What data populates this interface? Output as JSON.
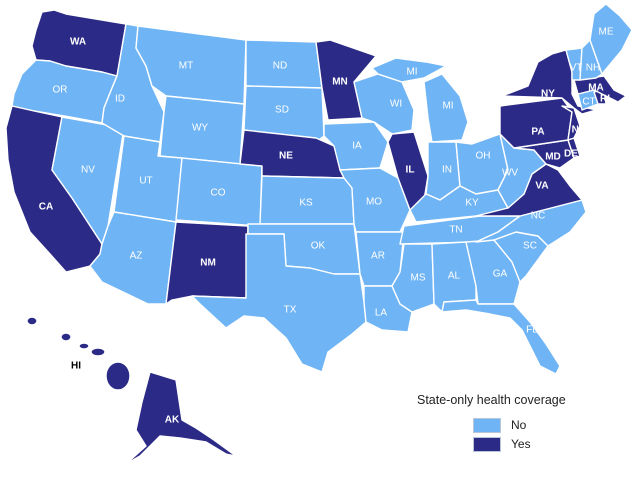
{
  "colors": {
    "no": "#6fb4f4",
    "yes": "#2b2a86",
    "border": "#ffffff"
  },
  "legend": {
    "title": "State-only health coverage",
    "items": [
      {
        "label": "No",
        "status": "no"
      },
      {
        "label": "Yes",
        "status": "yes"
      }
    ]
  },
  "states": [
    {
      "abbr": "WA",
      "status": "yes"
    },
    {
      "abbr": "OR",
      "status": "no"
    },
    {
      "abbr": "CA",
      "status": "yes"
    },
    {
      "abbr": "NV",
      "status": "no"
    },
    {
      "abbr": "ID",
      "status": "no"
    },
    {
      "abbr": "MT",
      "status": "no"
    },
    {
      "abbr": "WY",
      "status": "no"
    },
    {
      "abbr": "UT",
      "status": "no"
    },
    {
      "abbr": "AZ",
      "status": "no"
    },
    {
      "abbr": "CO",
      "status": "no"
    },
    {
      "abbr": "NM",
      "status": "yes"
    },
    {
      "abbr": "ND",
      "status": "no"
    },
    {
      "abbr": "SD",
      "status": "no"
    },
    {
      "abbr": "NE",
      "status": "yes"
    },
    {
      "abbr": "KS",
      "status": "no"
    },
    {
      "abbr": "OK",
      "status": "no"
    },
    {
      "abbr": "TX",
      "status": "no"
    },
    {
      "abbr": "MN",
      "status": "yes"
    },
    {
      "abbr": "IA",
      "status": "no"
    },
    {
      "abbr": "MO",
      "status": "no"
    },
    {
      "abbr": "AR",
      "status": "no"
    },
    {
      "abbr": "LA",
      "status": "no"
    },
    {
      "abbr": "WI",
      "status": "no"
    },
    {
      "abbr": "IL",
      "status": "yes"
    },
    {
      "abbr": "MI",
      "status": "no"
    },
    {
      "abbr": "IN",
      "status": "no"
    },
    {
      "abbr": "OH",
      "status": "no"
    },
    {
      "abbr": "KY",
      "status": "no"
    },
    {
      "abbr": "TN",
      "status": "no"
    },
    {
      "abbr": "MS",
      "status": "no"
    },
    {
      "abbr": "AL",
      "status": "no"
    },
    {
      "abbr": "GA",
      "status": "no"
    },
    {
      "abbr": "FL",
      "status": "no"
    },
    {
      "abbr": "SC",
      "status": "no"
    },
    {
      "abbr": "NC",
      "status": "no"
    },
    {
      "abbr": "VA",
      "status": "yes"
    },
    {
      "abbr": "WV",
      "status": "no"
    },
    {
      "abbr": "MD",
      "status": "yes"
    },
    {
      "abbr": "DE",
      "status": "yes"
    },
    {
      "abbr": "PA",
      "status": "yes"
    },
    {
      "abbr": "NJ",
      "status": "yes"
    },
    {
      "abbr": "NY",
      "status": "yes"
    },
    {
      "abbr": "CT",
      "status": "no"
    },
    {
      "abbr": "RI",
      "status": "yes"
    },
    {
      "abbr": "MA",
      "status": "yes"
    },
    {
      "abbr": "VT",
      "status": "no"
    },
    {
      "abbr": "NH",
      "status": "no"
    },
    {
      "abbr": "ME",
      "status": "no"
    },
    {
      "abbr": "AK",
      "status": "yes"
    },
    {
      "abbr": "HI",
      "status": "yes"
    }
  ],
  "labels": [
    "WA",
    "OR",
    "CA",
    "NV",
    "ID",
    "MT",
    "WY",
    "UT",
    "AZ",
    "CO",
    "NM",
    "ND",
    "SD",
    "NE",
    "KS",
    "OK",
    "TX",
    "MN",
    "IA",
    "MO",
    "AR",
    "LA",
    "WI",
    "IL",
    "MI",
    "MI",
    "IN",
    "OH",
    "KY",
    "TN",
    "MS",
    "AL",
    "GA",
    "FL",
    "SC",
    "NC",
    "VA",
    "WV",
    "MD",
    "DE",
    "PA",
    "NJ",
    "NY",
    "CT",
    "RI",
    "MA",
    "VT",
    "NH",
    "ME",
    "AK",
    "HI"
  ]
}
